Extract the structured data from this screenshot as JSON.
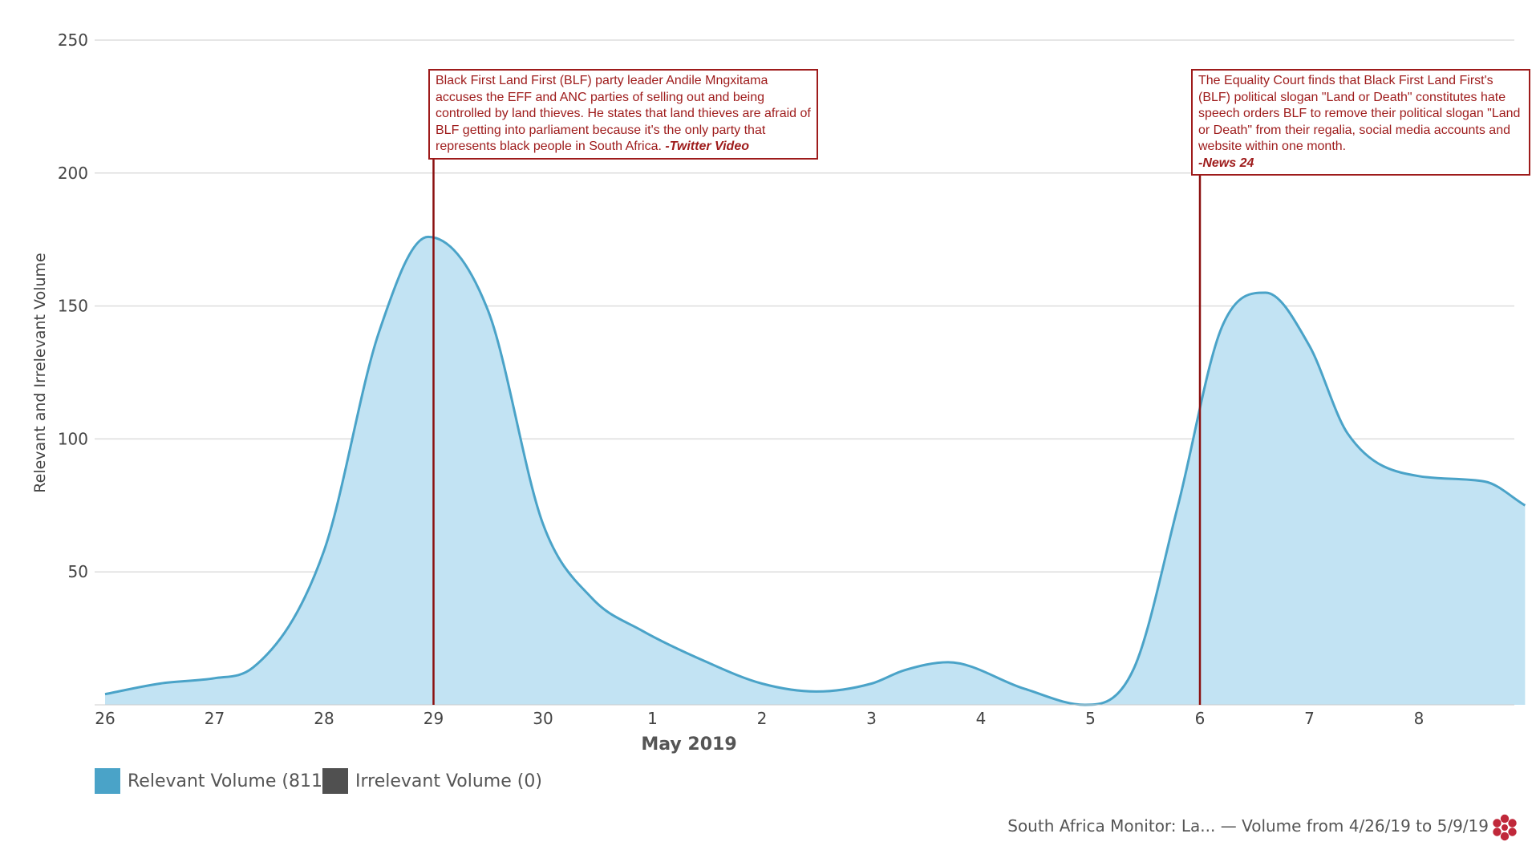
{
  "chart_data": {
    "type": "area",
    "ylabel": "Relevant and Irrelevant Volume",
    "xlabel": "May 2019",
    "ylim": [
      0,
      250
    ],
    "yticks": [
      50,
      100,
      150,
      200,
      250
    ],
    "x_tick_labels": [
      "26",
      "27",
      "28",
      "29",
      "30",
      "1",
      "2",
      "3",
      "4",
      "5",
      "6",
      "7",
      "8"
    ],
    "series": [
      {
        "name": "Relevant Volume",
        "color": "#4aa3c8",
        "fill": "#c2e3f3",
        "x": [
          0,
          0.5,
          1,
          1.35,
          2,
          2.5,
          2.95,
          3.5,
          4,
          4.45,
          4.9,
          5.5,
          6,
          6.5,
          7,
          7.3,
          7.7,
          8.4,
          8.95,
          9.4,
          9.8,
          10.2,
          10.6,
          11,
          11.35,
          12,
          12.6,
          12.97
        ],
        "values": [
          4,
          8,
          10,
          14,
          58,
          140,
          176,
          148,
          68,
          40,
          28,
          16,
          8,
          5,
          8,
          13,
          16,
          6,
          0,
          14,
          75,
          142,
          155,
          135,
          102,
          86,
          84,
          75
        ]
      },
      {
        "name": "Irrelevant Volume",
        "color": "#505050",
        "values": []
      }
    ],
    "annotations": [
      {
        "x": 3,
        "text": "Black First Land First (BLF) party leader Andile Mngxitama accuses the EFF and ANC parties of selling out and being controlled by land thieves. He states that land thieves are afraid of BLF getting into parliament because it's the only party that represents black people in South Africa.",
        "source": "-Twitter Video"
      },
      {
        "x": 10,
        "text": "The Equality Court finds that Black First Land First's (BLF) political slogan \"Land or Death\" constitutes hate speech orders BLF to remove their political slogan \"Land or Death\" from their regalia, social media accounts and website within one month.",
        "source": "-News 24"
      }
    ]
  },
  "legend": {
    "relevant_label": "Relevant Volume (811)",
    "irrelevant_label": "Irrelevant Volume (0)",
    "relevant_color": "#4aa3c8",
    "irrelevant_color": "#505050"
  },
  "footer": {
    "text": "South Africa Monitor: La... — Volume from 4/26/19 to 5/9/19"
  },
  "logo": {
    "icon": "brand-flower-icon",
    "color": "#c0283a"
  }
}
